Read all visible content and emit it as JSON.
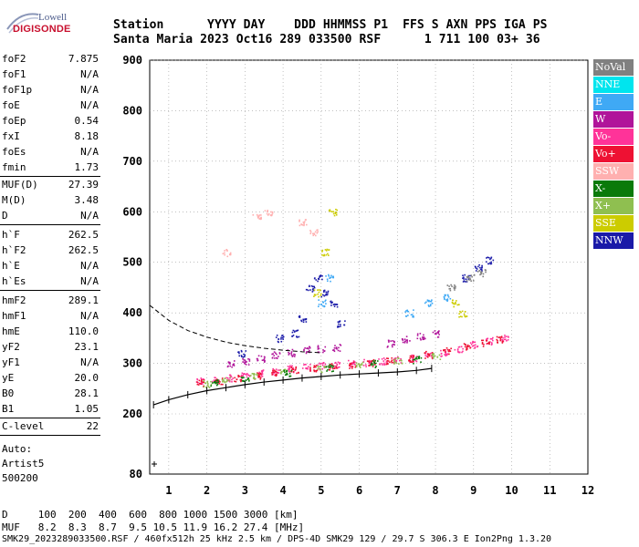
{
  "logo": {
    "line1": "Lowell",
    "line2": "DIGISONDE"
  },
  "header": {
    "row1": "Station      YYYY DAY    DDD HHMMSS P1  FFS S AXN PPS IGA PS",
    "row2": "Santa Maria 2023 Oct16 289 033500 RSF      1 711 100 03+ 36"
  },
  "parameters": [
    {
      "key": "foF2",
      "value": "7.875"
    },
    {
      "key": "foF1",
      "value": "N/A"
    },
    {
      "key": "foF1p",
      "value": "N/A"
    },
    {
      "key": "foE",
      "value": "N/A"
    },
    {
      "key": "foEp",
      "value": "0.54"
    },
    {
      "key": "fxI",
      "value": "8.18"
    },
    {
      "key": "foEs",
      "value": "N/A"
    },
    {
      "key": "fmin",
      "value": "1.73"
    },
    {
      "key": "MUF(D)",
      "value": "27.39"
    },
    {
      "key": "M(D)",
      "value": "3.48"
    },
    {
      "key": "D",
      "value": "N/A"
    },
    {
      "key": "h`F",
      "value": "262.5"
    },
    {
      "key": "h`F2",
      "value": "262.5"
    },
    {
      "key": "h`E",
      "value": "N/A"
    },
    {
      "key": "h`Es",
      "value": "N/A"
    },
    {
      "key": "hmF2",
      "value": "289.1"
    },
    {
      "key": "hmF1",
      "value": "N/A"
    },
    {
      "key": "hmE",
      "value": "110.0"
    },
    {
      "key": "yF2",
      "value": "23.1"
    },
    {
      "key": "yF1",
      "value": "N/A"
    },
    {
      "key": "yE",
      "value": "20.0"
    },
    {
      "key": "B0",
      "value": "28.1"
    },
    {
      "key": "B1",
      "value": "1.05"
    },
    {
      "key": "C-level",
      "value": "22"
    }
  ],
  "auto": {
    "line1": "Auto:",
    "line2": "Artist5",
    "line3": "500200"
  },
  "legend": [
    {
      "label": "NoVal",
      "color": "#808080",
      "text": "#ffffff"
    },
    {
      "label": "NNE",
      "color": "#00e5ee",
      "text": "#ffffff"
    },
    {
      "label": "E",
      "color": "#3fa9f5",
      "text": "#ffffff"
    },
    {
      "label": "W",
      "color": "#b0149a",
      "text": "#ffffff"
    },
    {
      "label": "Vo-",
      "color": "#ff3399",
      "text": "#ffffff"
    },
    {
      "label": "Vo+",
      "color": "#ee1133",
      "text": "#ffffff"
    },
    {
      "label": "SSW",
      "color": "#ffb0b0",
      "text": "#ffffff"
    },
    {
      "label": "X-",
      "color": "#0a7a0a",
      "text": "#ffffff"
    },
    {
      "label": "X+",
      "color": "#8fbf50",
      "text": "#ffffff"
    },
    {
      "label": "SSE",
      "color": "#cccc00",
      "text": "#ffffff"
    },
    {
      "label": "NNW",
      "color": "#1a1aa8",
      "text": "#ffffff"
    }
  ],
  "footer": {
    "d_row": "D     100  200  400  600  800 1000 1500 3000 [km]",
    "muf_row": "MUF   8.2  8.3  8.7  9.5 10.5 11.9 16.2 27.4 [MHz]",
    "file_row": "SMK29_2023289033500.RSF / 460fx512h 25 kHz 2.5 km / DPS-4D SMK29 129 / 29.7 S 306.3 E Ion2Png 1.3.20"
  },
  "chart_data": {
    "type": "scatter",
    "xlim": [
      0.5,
      12
    ],
    "ylim": [
      80,
      900
    ],
    "x_ticks": [
      "1",
      "2",
      "3",
      "4",
      "5",
      "6",
      "7",
      "8",
      "9",
      "10",
      "11",
      "12"
    ],
    "y_ticks": [
      "80",
      "200",
      "300",
      "400",
      "500",
      "600",
      "700",
      "800",
      "900"
    ],
    "grid": true,
    "series": [
      {
        "name": "Vo-",
        "color": "#ff3399",
        "points": [
          [
            1.8,
            265
          ],
          [
            2.2,
            268
          ],
          [
            2.6,
            272
          ],
          [
            3.0,
            276
          ],
          [
            3.4,
            281
          ],
          [
            3.8,
            285
          ],
          [
            4.2,
            290
          ],
          [
            4.6,
            293
          ],
          [
            5.0,
            296
          ],
          [
            5.4,
            298
          ],
          [
            5.8,
            300
          ],
          [
            6.2,
            302
          ],
          [
            6.6,
            305
          ],
          [
            7.0,
            308
          ],
          [
            7.4,
            311
          ],
          [
            7.8,
            316
          ],
          [
            8.2,
            322
          ],
          [
            8.6,
            330
          ],
          [
            9.0,
            338
          ],
          [
            9.4,
            345
          ],
          [
            9.8,
            350
          ]
        ]
      },
      {
        "name": "Vo+",
        "color": "#ee1133",
        "points": [
          [
            1.8,
            262
          ],
          [
            2.3,
            266
          ],
          [
            2.8,
            271
          ],
          [
            3.3,
            277
          ],
          [
            3.8,
            283
          ],
          [
            4.3,
            288
          ],
          [
            4.8,
            292
          ],
          [
            5.3,
            295
          ],
          [
            5.8,
            298
          ],
          [
            6.3,
            302
          ],
          [
            6.8,
            306
          ],
          [
            7.3,
            310
          ],
          [
            7.8,
            318
          ],
          [
            8.3,
            326
          ],
          [
            8.8,
            334
          ],
          [
            9.3,
            342
          ],
          [
            9.7,
            348
          ]
        ]
      },
      {
        "name": "W",
        "color": "#b0149a",
        "points": [
          [
            2.6,
            300
          ],
          [
            3.0,
            305
          ],
          [
            3.4,
            310
          ],
          [
            3.8,
            318
          ],
          [
            4.2,
            322
          ],
          [
            4.6,
            328
          ],
          [
            5.0,
            330
          ],
          [
            5.4,
            332
          ],
          [
            6.8,
            340
          ],
          [
            7.2,
            348
          ],
          [
            7.6,
            355
          ],
          [
            8.0,
            360
          ]
        ]
      },
      {
        "name": "NNW",
        "color": "#1a1aa8",
        "points": [
          [
            4.7,
            450
          ],
          [
            4.9,
            470
          ],
          [
            5.1,
            440
          ],
          [
            5.3,
            420
          ],
          [
            5.5,
            380
          ],
          [
            4.5,
            390
          ],
          [
            4.3,
            360
          ],
          [
            3.9,
            350
          ],
          [
            2.9,
            320
          ],
          [
            8.8,
            470
          ],
          [
            9.1,
            490
          ],
          [
            9.4,
            505
          ]
        ]
      },
      {
        "name": "X+",
        "color": "#8fbf50",
        "points": [
          [
            2.0,
            260
          ],
          [
            2.5,
            268
          ],
          [
            3.2,
            275
          ],
          [
            4.0,
            285
          ],
          [
            5.0,
            290
          ],
          [
            6.0,
            300
          ],
          [
            7.0,
            305
          ],
          [
            8.0,
            315
          ]
        ]
      },
      {
        "name": "X-",
        "color": "#0a7a0a",
        "points": [
          [
            2.2,
            262
          ],
          [
            3.0,
            272
          ],
          [
            4.1,
            282
          ],
          [
            5.2,
            292
          ],
          [
            6.4,
            300
          ],
          [
            7.5,
            308
          ]
        ]
      },
      {
        "name": "SSE",
        "color": "#cccc00",
        "points": [
          [
            4.9,
            440
          ],
          [
            5.1,
            520
          ],
          [
            5.3,
            600
          ],
          [
            8.5,
            420
          ],
          [
            8.7,
            400
          ]
        ]
      },
      {
        "name": "E",
        "color": "#3fa9f5",
        "points": [
          [
            5.0,
            420
          ],
          [
            5.2,
            470
          ],
          [
            7.3,
            400
          ],
          [
            7.8,
            420
          ],
          [
            8.3,
            430
          ]
        ]
      },
      {
        "name": "SSW",
        "color": "#ffb0b0",
        "points": [
          [
            2.5,
            520
          ],
          [
            3.3,
            590
          ],
          [
            3.6,
            600
          ],
          [
            4.5,
            580
          ],
          [
            4.8,
            560
          ]
        ]
      },
      {
        "name": "NoVal",
        "color": "#808080",
        "points": [
          [
            8.4,
            450
          ],
          [
            8.9,
            470
          ],
          [
            9.2,
            480
          ]
        ]
      }
    ],
    "trace": {
      "points": [
        [
          0.6,
          218
        ],
        [
          1.0,
          228
        ],
        [
          1.5,
          238
        ],
        [
          2.0,
          246
        ],
        [
          2.5,
          252
        ],
        [
          3.0,
          258
        ],
        [
          3.5,
          263
        ],
        [
          4.0,
          267
        ],
        [
          4.5,
          271
        ],
        [
          5.0,
          274
        ],
        [
          5.5,
          277
        ],
        [
          6.0,
          279
        ],
        [
          6.5,
          281
        ],
        [
          7.0,
          283
        ],
        [
          7.5,
          286
        ],
        [
          7.9,
          290
        ]
      ],
      "color": "#000000"
    },
    "profile_dashed": {
      "points": [
        [
          0.5,
          415
        ],
        [
          1.0,
          385
        ],
        [
          1.5,
          365
        ],
        [
          2.0,
          352
        ],
        [
          2.5,
          342
        ],
        [
          3.0,
          335
        ],
        [
          3.5,
          330
        ],
        [
          4.0,
          326
        ],
        [
          4.5,
          323
        ],
        [
          5.0,
          321
        ]
      ],
      "color": "#000000"
    },
    "marker": {
      "x": 0.62,
      "y": 100
    }
  }
}
